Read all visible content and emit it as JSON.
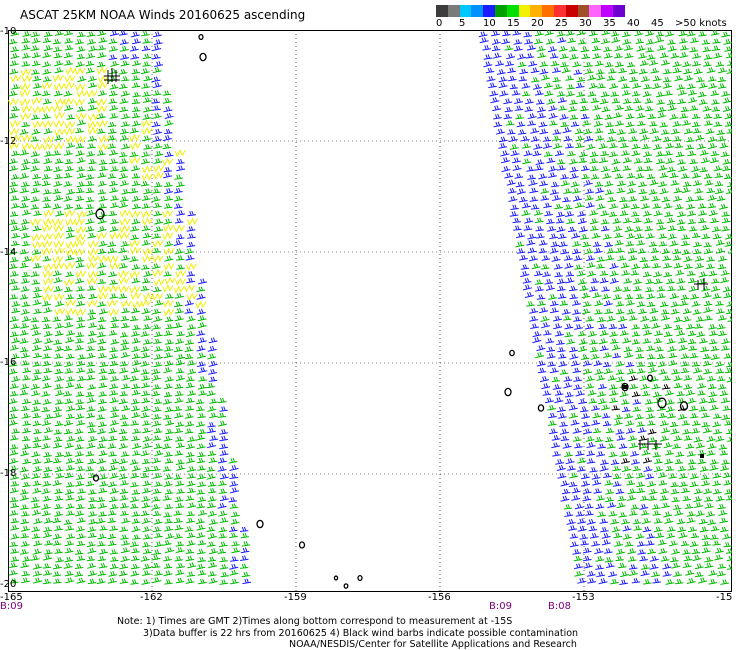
{
  "title": "ASCAT 25KM NOAA Winds 20160625 ascending",
  "legend": {
    "labels": [
      "0",
      "5",
      "10",
      "15",
      "20",
      "25",
      "30",
      "35",
      "40",
      "45",
      ">50 knots"
    ],
    "colors": [
      "#3c3c3c",
      "#7a7a7a",
      "#00c8ff",
      "#0090ff",
      "#1c1cff",
      "#00a000",
      "#00e000",
      "#f0f000",
      "#ffb000",
      "#ff7000",
      "#ff3030",
      "#c80000",
      "#a05028",
      "#ff64ff",
      "#c000ff",
      "#7000d0"
    ]
  },
  "axes": {
    "x_ticks": [
      "-165",
      "-162",
      "-159",
      "-156",
      "-153",
      "-15"
    ],
    "y_ticks": [
      "-10",
      "-12",
      "-14",
      "-16",
      "-18",
      "-20"
    ]
  },
  "time_stamps": [
    "B:09",
    "B:09",
    "B:08"
  ],
  "notes": [
    "Note: 1) Times are GMT 2)Times along bottom correspond to measurement at -15S",
    "3)Data buffer is 22 hrs from 20160625 4) Black wind barbs indicate possible contamination",
    "NOAA/NESDIS/Center for Satellite Applications and Research"
  ],
  "map": {
    "lon_range": [
      -165,
      -150
    ],
    "lat_range": [
      -20,
      -10
    ],
    "colors": {
      "frame": "#000000",
      "grid": "#000000",
      "yellow": "#f0f000",
      "green": "#00bb00",
      "blue": "#1c1cff",
      "black": "#000000",
      "island": "#000000"
    }
  }
}
